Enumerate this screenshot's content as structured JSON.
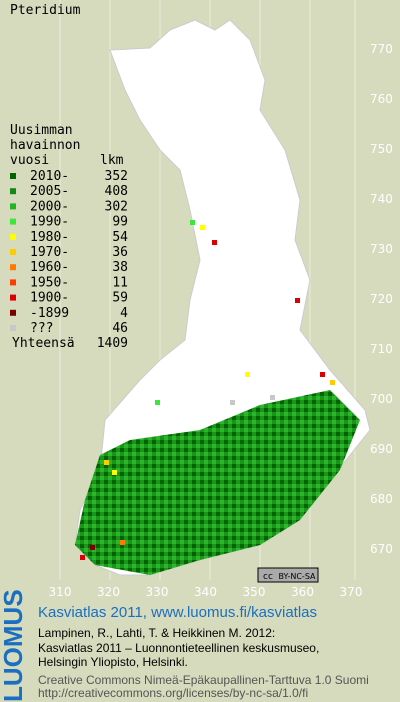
{
  "title": "Pteridium",
  "legend": {
    "heading": [
      "Uusimman",
      "havainnon",
      "vuosi"
    ],
    "count_heading": "lkm",
    "rows": [
      {
        "label": "2010-",
        "count": 352,
        "color": "#006400"
      },
      {
        "label": "2005-",
        "count": 408,
        "color": "#138a13"
      },
      {
        "label": "2000-",
        "count": 302,
        "color": "#22b422"
      },
      {
        "label": "1990-",
        "count": 99,
        "color": "#3ae83a"
      },
      {
        "label": "1980-",
        "count": 54,
        "color": "#ffff00"
      },
      {
        "label": "1970-",
        "count": 36,
        "color": "#ffcc00"
      },
      {
        "label": "1960-",
        "count": 38,
        "color": "#ff7a00"
      },
      {
        "label": "1950-",
        "count": 11,
        "color": "#ff3c00"
      },
      {
        "label": "1900-",
        "count": 59,
        "color": "#dd0000"
      },
      {
        "label": "-1899",
        "count": 4,
        "color": "#7a0000"
      },
      {
        "label": "???",
        "count": 46,
        "color": "#c8c8c8"
      }
    ],
    "total_label": "Yhteensä",
    "total": 1409
  },
  "axis": {
    "right": [
      770,
      760,
      750,
      740,
      730,
      720,
      710,
      700,
      690,
      680,
      670
    ],
    "bottom": [
      310,
      320,
      330,
      340,
      350,
      360,
      370
    ]
  },
  "badge": [
    "cc",
    "BY-NC-SA"
  ],
  "footer": {
    "logo": "LUOMUS",
    "title": "Kasviatlas 2011, www.luomus.fi/kasviatlas",
    "citation": [
      "Lampinen, R., Lahti, T. & Heikkinen M. 2012:",
      "Kasviatlas 2011 – Luonnontieteellinen keskusmuseo,",
      "Helsingin Yliopisto, Helsinki."
    ],
    "license": [
      "Creative Commons Nimeä-Epäkaupallinen-Tarttuva 1.0 Suomi",
      "http://creativecommons.org/licenses/by-nc-sa/1.0/fi"
    ]
  }
}
